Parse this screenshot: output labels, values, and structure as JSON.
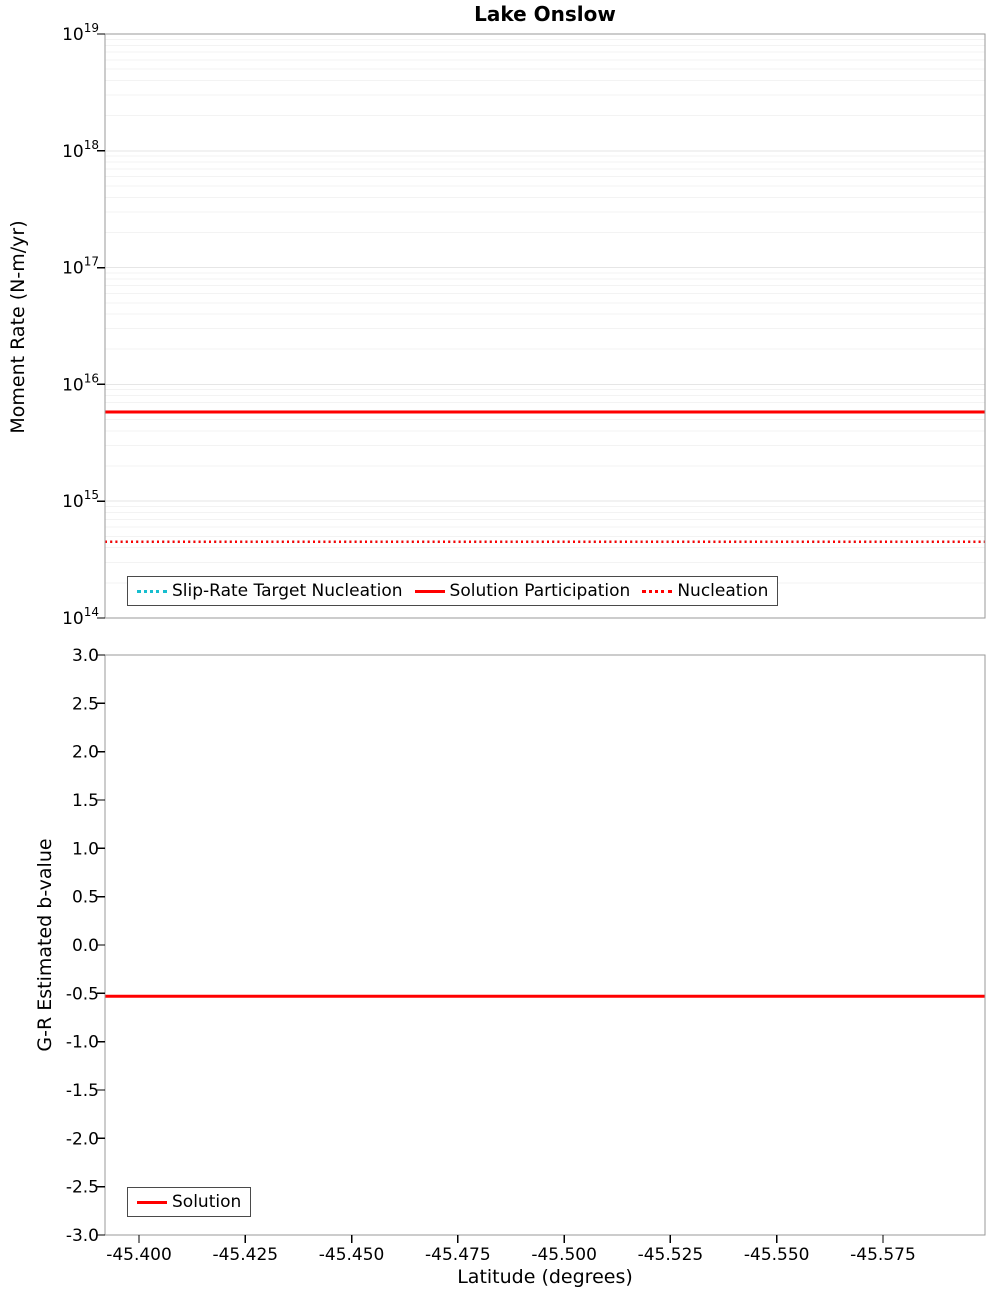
{
  "chart_data": [
    {
      "type": "line",
      "title": "Lake Onslow",
      "ylabel": "Moment Rate (N-m/yr)",
      "yscale": "log",
      "ylim": [
        100000000000000.0,
        1e+19
      ],
      "y_tick_exponents": [
        14,
        15,
        16,
        17,
        18,
        19
      ],
      "xlim": [
        -45.392,
        -45.599
      ],
      "x_axis_descending": true,
      "grid": "horizontal-minor-faint",
      "legend_position": "bottom-center-inside",
      "series": [
        {
          "name": "Slip-Rate Target Nucleation",
          "color": "#17becf",
          "line_style": "dotted",
          "line_width": 2.5,
          "y": 450000000000000.0
        },
        {
          "name": "Solution Participation",
          "color": "#ff0000",
          "line_style": "solid",
          "line_width": 3,
          "y": 5800000000000000.0
        },
        {
          "name": "Nucleation",
          "color": "#ff0000",
          "line_style": "dotted",
          "line_width": 2.5,
          "y": 450000000000000.0
        }
      ]
    },
    {
      "type": "line",
      "ylabel": "G-R Estimated b-value",
      "xlabel": "Latitude (degrees)",
      "ylim": [
        -3.0,
        3.0
      ],
      "y_ticks": [
        3.0,
        2.5,
        2.0,
        1.5,
        1.0,
        0.5,
        0.0,
        -0.5,
        -1.0,
        -1.5,
        -2.0,
        -2.5,
        -3.0
      ],
      "y_tick_labels": [
        "3.0",
        "2.5",
        "2.0",
        "1.5",
        "1.0",
        "0.5",
        "0.0",
        "-0.5",
        "-1.0",
        "-1.5",
        "-2.0",
        "-2.5",
        "-3.0"
      ],
      "x_ticks": [
        -45.4,
        -45.425,
        -45.45,
        -45.475,
        -45.5,
        -45.525,
        -45.55,
        -45.575
      ],
      "x_tick_labels": [
        "-45.400",
        "-45.425",
        "-45.450",
        "-45.475",
        "-45.500",
        "-45.525",
        "-45.550",
        "-45.575"
      ],
      "grid": "none",
      "legend_position": "bottom-left-inside",
      "series": [
        {
          "name": "Solution",
          "color": "#ff0000",
          "line_style": "solid",
          "line_width": 3,
          "y": -0.53
        }
      ]
    }
  ]
}
